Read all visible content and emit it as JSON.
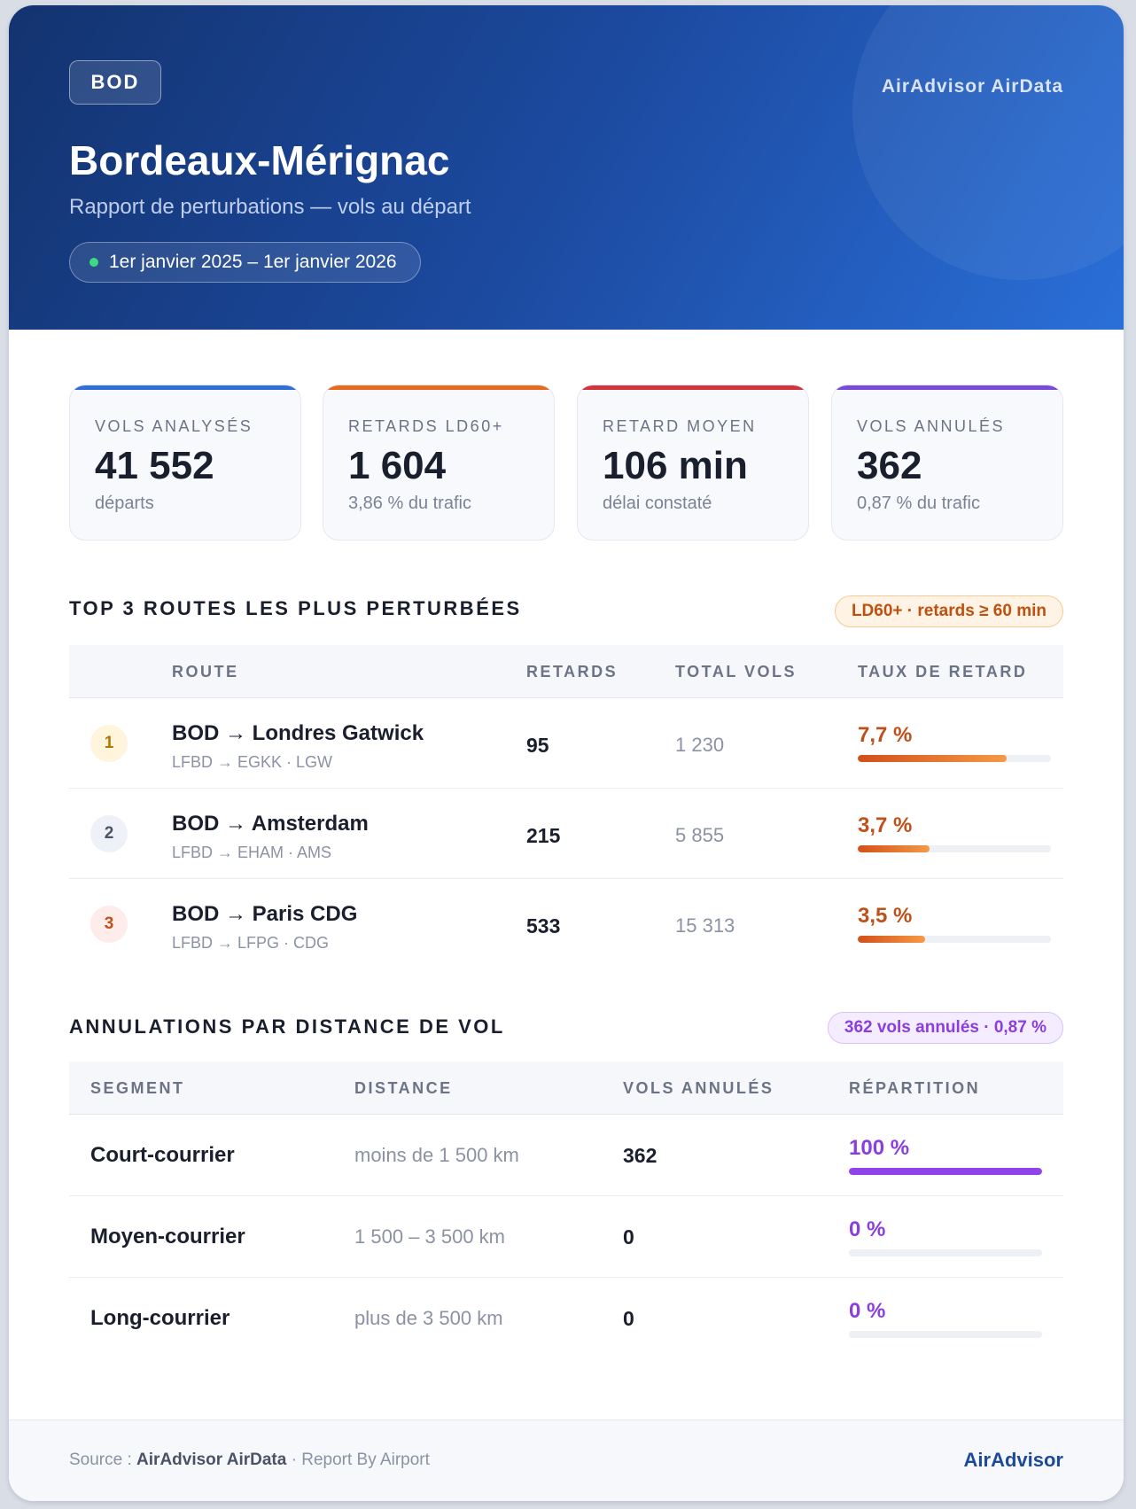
{
  "header": {
    "code": "BOD",
    "brand": "AirAdvisor AirData",
    "title": "Bordeaux-Mérignac",
    "subtitle": "Rapport de perturbations — vols au départ",
    "period": "1er janvier 2025 – 1er janvier 2026"
  },
  "kpis": [
    {
      "label": "VOLS ANALYSÉS",
      "value": "41 552",
      "sub": "départs",
      "accent": "#2f6fd6"
    },
    {
      "label": "RETARDS LD60+",
      "value": "1 604",
      "sub": "3,86 % du trafic",
      "accent": "#e86a1f"
    },
    {
      "label": "RETARD MOYEN",
      "value": "106 min",
      "sub": "délai constaté",
      "accent": "#d3333a"
    },
    {
      "label": "VOLS ANNULÉS",
      "value": "362",
      "sub": "0,87 % du trafic",
      "accent": "#7a4ad8"
    }
  ],
  "routes": {
    "title": "TOP 3 ROUTES LES PLUS PERTURBÉES",
    "tag": "LD60+ · retards ≥ 60 min",
    "columns": [
      "ROUTE",
      "RETARDS",
      "TOTAL VOLS",
      "TAUX DE RETARD"
    ],
    "rows": [
      {
        "rank": "1",
        "title": "BOD → Londres Gatwick",
        "codes": "LFBD → EGKK · LGW",
        "delays": "95",
        "total": "1 230",
        "rate": "7,7 %",
        "rate_fraction": 0.77,
        "rank_bg": "#fff5dc",
        "rank_color": "#b07800"
      },
      {
        "rank": "2",
        "title": "BOD → Amsterdam",
        "codes": "LFBD → EHAM · AMS",
        "delays": "215",
        "total": "5 855",
        "rate": "3,7 %",
        "rate_fraction": 0.37,
        "rank_bg": "#eef1f7",
        "rank_color": "#4a5366"
      },
      {
        "rank": "3",
        "title": "BOD → Paris CDG",
        "codes": "LFBD → LFPG · CDG",
        "delays": "533",
        "total": "15 313",
        "rate": "3,5 %",
        "rate_fraction": 0.35,
        "rank_bg": "#fdecea",
        "rank_color": "#c0501a"
      }
    ]
  },
  "cancellations": {
    "title": "ANNULATIONS PAR DISTANCE DE VOL",
    "tag": "362 vols annulés · 0,87 %",
    "columns": [
      "SEGMENT",
      "DISTANCE",
      "VOLS ANNULÉS",
      "RÉPARTITION"
    ],
    "rows": [
      {
        "segment": "Court-courrier",
        "distance": "moins de 1 500 km",
        "count": "362",
        "pct": "100 %",
        "fraction": 1.0
      },
      {
        "segment": "Moyen-courrier",
        "distance": "1 500 – 3 500 km",
        "count": "0",
        "pct": "0 %",
        "fraction": 0
      },
      {
        "segment": "Long-courrier",
        "distance": "plus de 3 500 km",
        "count": "0",
        "pct": "0 %",
        "fraction": 0
      }
    ]
  },
  "footer": {
    "source_prefix": "Source :",
    "source_name": "AirAdvisor AirData",
    "source_suffix": "· Report By Airport",
    "brand": "AirAdvisor"
  }
}
